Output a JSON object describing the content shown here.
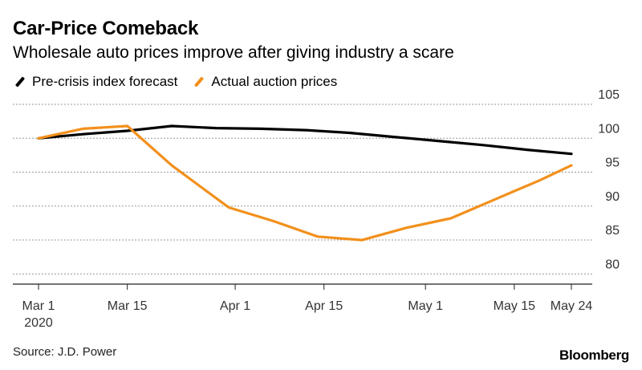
{
  "title": "Car-Price Comeback",
  "subtitle": "Wholesale auto prices improve after giving industry a scare",
  "source": "Source: J.D. Power",
  "brand": "Bloomberg",
  "colors": {
    "forecast": "#000000",
    "actual": "#f2901c",
    "grid": "#999999",
    "axis": "#222222"
  },
  "chart_data": {
    "type": "line",
    "x_ticks": [
      "Mar 1",
      "Mar 15",
      "Apr 1",
      "Apr 15",
      "May 1",
      "May 15",
      "May 24"
    ],
    "x_tick_sublabel": "2020",
    "y_ticks": [
      105,
      100,
      95,
      90,
      85,
      80
    ],
    "ylim": [
      78.5,
      105
    ],
    "xlim": [
      "2020-03-01",
      "2020-05-24"
    ],
    "grid": true,
    "legend_position": "top-left",
    "series": [
      {
        "name": "Pre-crisis index forecast",
        "color": "#000000",
        "points": [
          {
            "x": "2020-03-01",
            "y": 100
          },
          {
            "x": "2020-03-08",
            "y": 100.6
          },
          {
            "x": "2020-03-15",
            "y": 101.1
          },
          {
            "x": "2020-03-22",
            "y": 101.8
          },
          {
            "x": "2020-03-29",
            "y": 101.5
          },
          {
            "x": "2020-04-05",
            "y": 101.4
          },
          {
            "x": "2020-04-12",
            "y": 101.2
          },
          {
            "x": "2020-04-19",
            "y": 100.8
          },
          {
            "x": "2020-04-26",
            "y": 100.2
          },
          {
            "x": "2020-05-03",
            "y": 99.6
          },
          {
            "x": "2020-05-10",
            "y": 99.0
          },
          {
            "x": "2020-05-17",
            "y": 98.3
          },
          {
            "x": "2020-05-24",
            "y": 97.7
          }
        ]
      },
      {
        "name": "Actual auction prices",
        "color": "#f2901c",
        "points": [
          {
            "x": "2020-03-01",
            "y": 100
          },
          {
            "x": "2020-03-08",
            "y": 101.4
          },
          {
            "x": "2020-03-15",
            "y": 101.8
          },
          {
            "x": "2020-03-22",
            "y": 96.0
          },
          {
            "x": "2020-03-31",
            "y": 89.8
          },
          {
            "x": "2020-04-07",
            "y": 87.8
          },
          {
            "x": "2020-04-14",
            "y": 85.5
          },
          {
            "x": "2020-04-21",
            "y": 85.0
          },
          {
            "x": "2020-04-28",
            "y": 86.8
          },
          {
            "x": "2020-05-05",
            "y": 88.2
          },
          {
            "x": "2020-05-12",
            "y": 91.0
          },
          {
            "x": "2020-05-19",
            "y": 93.8
          },
          {
            "x": "2020-05-24",
            "y": 96.0
          }
        ]
      }
    ]
  }
}
